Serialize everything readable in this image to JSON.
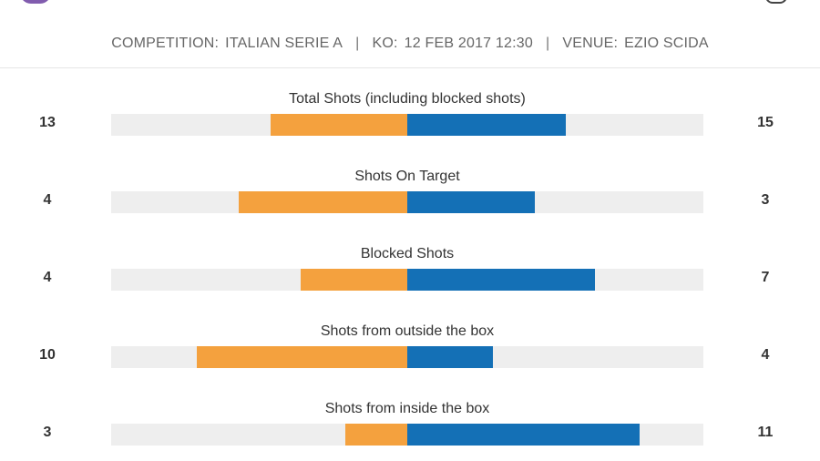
{
  "colors": {
    "home": "#f4a13e",
    "away": "#1470b6",
    "track": "#eeeeee"
  },
  "match_info": {
    "competition_label": "COMPETITION:",
    "competition": "ITALIAN SERIE A",
    "separator": "|",
    "ko_label": "KO:",
    "ko": "12 FEB 2017 12:30",
    "venue_label": "VENUE:",
    "venue": "EZIO SCIDA"
  },
  "stats": [
    {
      "title": "Total Shots (including blocked shots)",
      "home": "13",
      "away": "15",
      "home_frac": 0.46,
      "away_frac": 0.535
    },
    {
      "title": "Shots On Target",
      "home": "4",
      "away": "3",
      "home_frac": 0.57,
      "away_frac": 0.43
    },
    {
      "title": "Blocked Shots",
      "home": "4",
      "away": "7",
      "home_frac": 0.36,
      "away_frac": 0.635
    },
    {
      "title": "Shots from outside the box",
      "home": "10",
      "away": "4",
      "home_frac": 0.71,
      "away_frac": 0.29
    },
    {
      "title": "Shots from inside the box",
      "home": "3",
      "away": "11",
      "home_frac": 0.21,
      "away_frac": 0.785
    }
  ]
}
